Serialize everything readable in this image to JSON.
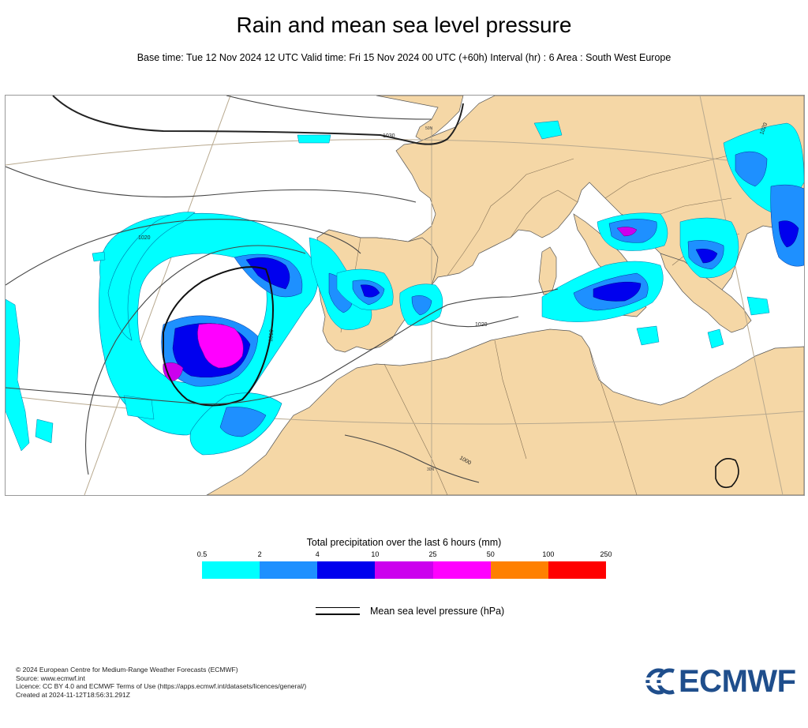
{
  "header": {
    "title": "Rain and mean sea level pressure",
    "subtitle": "Base time: Tue 12 Nov 2024 12 UTC Valid time: Fri 15 Nov 2024 00 UTC (+60h) Interval (hr) : 6 Area : South West Europe"
  },
  "map": {
    "isobar_labels": [
      "1030",
      "1020",
      "1010",
      "1020",
      "1020",
      "1000"
    ],
    "graticule_labels": [
      "50N",
      "30N"
    ],
    "colors": {
      "land": "#f5d7a6",
      "sea": "#ffffff",
      "border": "#6b5a44",
      "coast": "#555555",
      "isobar": "#444444",
      "graticule": "#b8a98f"
    }
  },
  "legend": {
    "title": "Total precipitation over the last 6 hours (mm)",
    "ticks": [
      "0.5",
      "2",
      "4",
      "10",
      "25",
      "50",
      "100",
      "250"
    ],
    "colors": [
      "#00ffff",
      "#1e90ff",
      "#0000ee",
      "#cc00ee",
      "#ff00ff",
      "#ff8000",
      "#ff0000"
    ]
  },
  "pressure_key": {
    "label": "Mean sea level pressure (hPa)"
  },
  "footer": {
    "lines": [
      "© 2024 European Centre for Medium-Range Weather Forecasts (ECMWF)",
      "Source: www.ecmwf.int",
      "Licence: CC BY 4.0 and ECMWF Terms of Use (https://apps.ecmwf.int/datasets/licences/general/)",
      "Created at 2024-11-12T18:56:31.291Z"
    ]
  },
  "logo": {
    "text": "ECMWF",
    "color": "#1f4e8c"
  }
}
